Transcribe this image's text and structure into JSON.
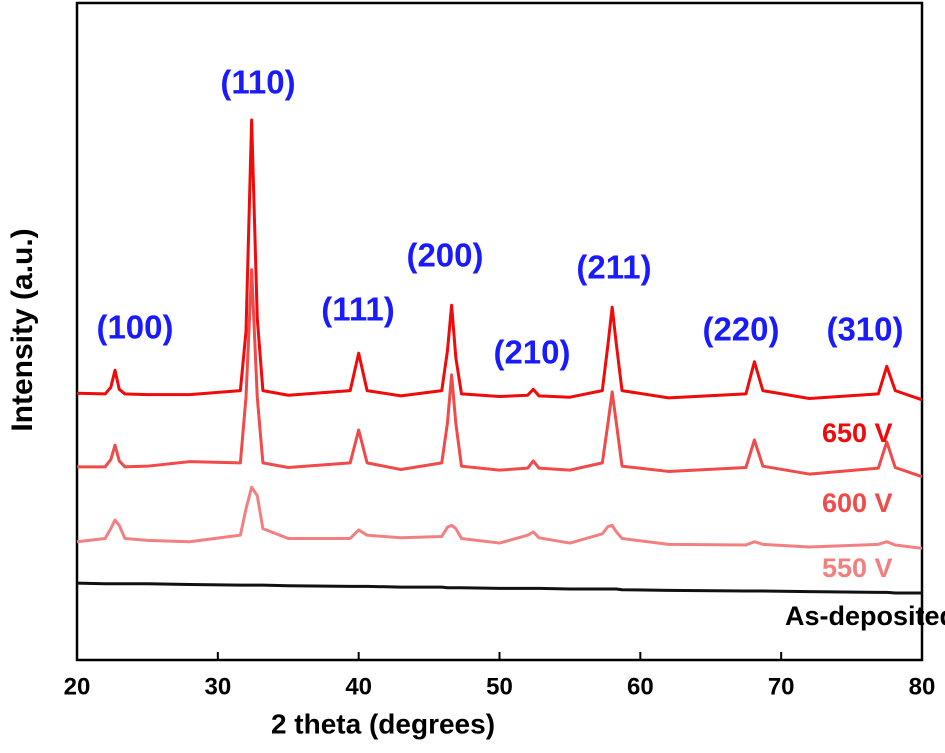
{
  "chart_data": {
    "type": "line",
    "x_label": "2 theta (degrees)",
    "y_label": "Intensity (a.u.)",
    "xlim": [
      20,
      80
    ],
    "xticks": [
      20,
      30,
      40,
      50,
      60,
      70,
      80
    ],
    "ylim": [
      0,
      100
    ],
    "annotations": [
      "(100)",
      "(110)",
      "(111)",
      "(200)",
      "(210)",
      "(211)",
      "(220)",
      "(310)"
    ],
    "annotation_color": "#1a1aff",
    "x": [
      20,
      22,
      22.4,
      22.7,
      23.0,
      23.4,
      25,
      28,
      31.6,
      32.0,
      32.4,
      32.8,
      33.2,
      35,
      39.4,
      40.0,
      40.6,
      43,
      45.9,
      46.3,
      46.6,
      46.9,
      47.3,
      50,
      52.0,
      52.4,
      52.8,
      55,
      57.3,
      57.7,
      58.0,
      58.3,
      58.7,
      62,
      67.5,
      68.1,
      68.7,
      72,
      76.9,
      77.5,
      78.1,
      80
    ],
    "series": [
      {
        "name": "650 V",
        "color": "#f00a0a",
        "values": [
          40.6,
          40.5,
          41.5,
          44.1,
          41.2,
          40.5,
          40.4,
          40.4,
          41,
          50,
          82.2,
          52,
          41,
          40.3,
          41,
          46.7,
          41,
          40.2,
          41,
          47,
          54,
          46,
          40.5,
          40.1,
          40.3,
          41.2,
          40.2,
          40,
          41,
          48,
          53.7,
          48,
          41,
          39.9,
          40.5,
          45.4,
          41,
          39.8,
          40.5,
          44.7,
          41,
          39.6
        ]
      },
      {
        "name": "600 V",
        "color": "#f04a4a",
        "values": [
          29.4,
          29.4,
          30.5,
          32.7,
          30.3,
          29.4,
          29.5,
          30.2,
          30,
          40,
          59.4,
          40,
          30,
          29.3,
          30,
          35,
          30,
          29,
          30,
          36,
          43.4,
          36,
          29.5,
          28.9,
          29.2,
          30.3,
          29.2,
          28.9,
          30,
          36,
          40.8,
          36,
          29.5,
          28.7,
          29.3,
          33.5,
          29.5,
          28.3,
          29.2,
          33.2,
          29.3,
          27.9
        ]
      },
      {
        "name": "550 V",
        "color": "#f28080",
        "values": [
          18,
          18.5,
          20,
          21.3,
          20.5,
          18.5,
          18.2,
          18,
          19,
          23,
          26.3,
          25,
          20,
          18.5,
          18.5,
          19.8,
          19,
          18.6,
          18.8,
          20.2,
          20.5,
          20,
          18.5,
          17.8,
          19,
          19.5,
          18.6,
          17.8,
          19.2,
          20.3,
          20.5,
          19.5,
          18.5,
          17.6,
          17.5,
          18,
          17.6,
          17.2,
          17.6,
          18,
          17.5,
          17
        ]
      },
      {
        "name": "As-deposited",
        "color": "#111111",
        "values": [
          11.7,
          11.6,
          11.6,
          11.6,
          11.6,
          11.6,
          11.6,
          11.5,
          11.4,
          11.4,
          11.4,
          11.4,
          11.4,
          11.3,
          11.2,
          11.2,
          11.2,
          11.1,
          11.1,
          11,
          11,
          11,
          11,
          10.9,
          10.9,
          10.9,
          10.9,
          10.8,
          10.8,
          10.8,
          10.8,
          10.8,
          10.7,
          10.6,
          10.5,
          10.5,
          10.5,
          10.4,
          10.3,
          10.3,
          10.2,
          10.2
        ]
      }
    ]
  }
}
